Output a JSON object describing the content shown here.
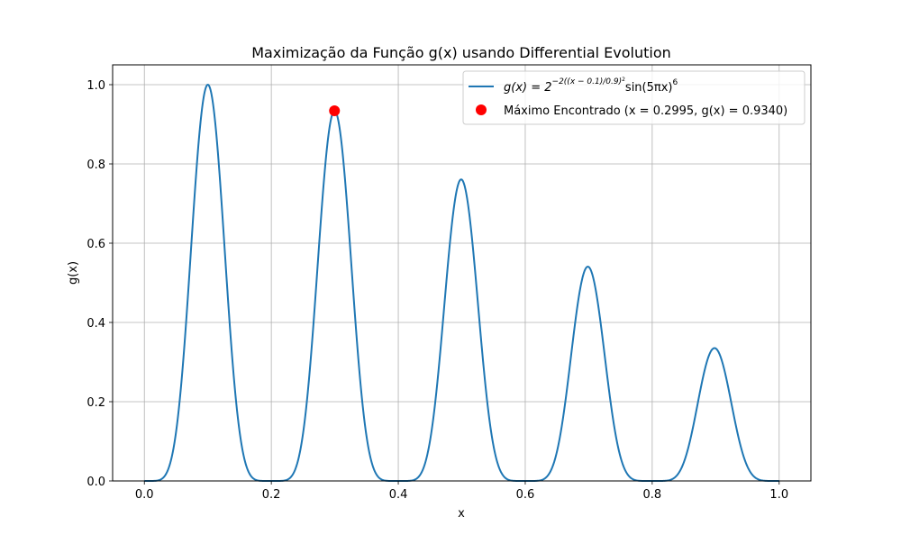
{
  "chart_data": {
    "type": "line",
    "title": "Maximização da Função g(x) usando Differential Evolution",
    "xlabel": "x",
    "ylabel": "g(x)",
    "xlim": [
      -0.05,
      1.05
    ],
    "ylim": [
      0.0,
      1.05
    ],
    "xticks": [
      0.0,
      0.2,
      0.4,
      0.6,
      0.8,
      1.0
    ],
    "xtick_labels": [
      "0.0",
      "0.2",
      "0.4",
      "0.6",
      "0.8",
      "1.0"
    ],
    "yticks": [
      0.0,
      0.2,
      0.4,
      0.6,
      0.8,
      1.0
    ],
    "ytick_labels": [
      "0.0",
      "0.2",
      "0.4",
      "0.6",
      "0.8",
      "1.0"
    ],
    "grid": true,
    "legend_position": "top-right",
    "series": [
      {
        "name": "g(x) = 2^{-2((x-0.1)/0.9)^2} sin(5πx)^6",
        "kind": "line",
        "color": "#1f77b4",
        "function": "2^(-2*((x-0.1)/0.9)^2) * sin(5*pi*x)^6",
        "x_range": [
          0.0,
          1.0
        ],
        "peaks": [
          {
            "x": 0.1,
            "y": 1.0
          },
          {
            "x": 0.3,
            "y": 0.934
          },
          {
            "x": 0.5,
            "y": 0.76
          },
          {
            "x": 0.7,
            "y": 0.54
          },
          {
            "x": 0.9,
            "y": 0.335
          }
        ]
      },
      {
        "name": "Máximo Encontrado (x = 0.2995, g(x) = 0.9340)",
        "kind": "point",
        "color": "#ff0000",
        "x": 0.2995,
        "y": 0.934
      }
    ]
  },
  "legend": {
    "curve_prefix": "g(x) = 2",
    "curve_exponent": "−2((x − 0.1)/0.9)",
    "curve_exponent_sq": "2",
    "curve_suffix": "sin(5πx)",
    "curve_power": "6",
    "point_label": "Máximo Encontrado (x = 0.2995, g(x) = 0.9340)"
  }
}
